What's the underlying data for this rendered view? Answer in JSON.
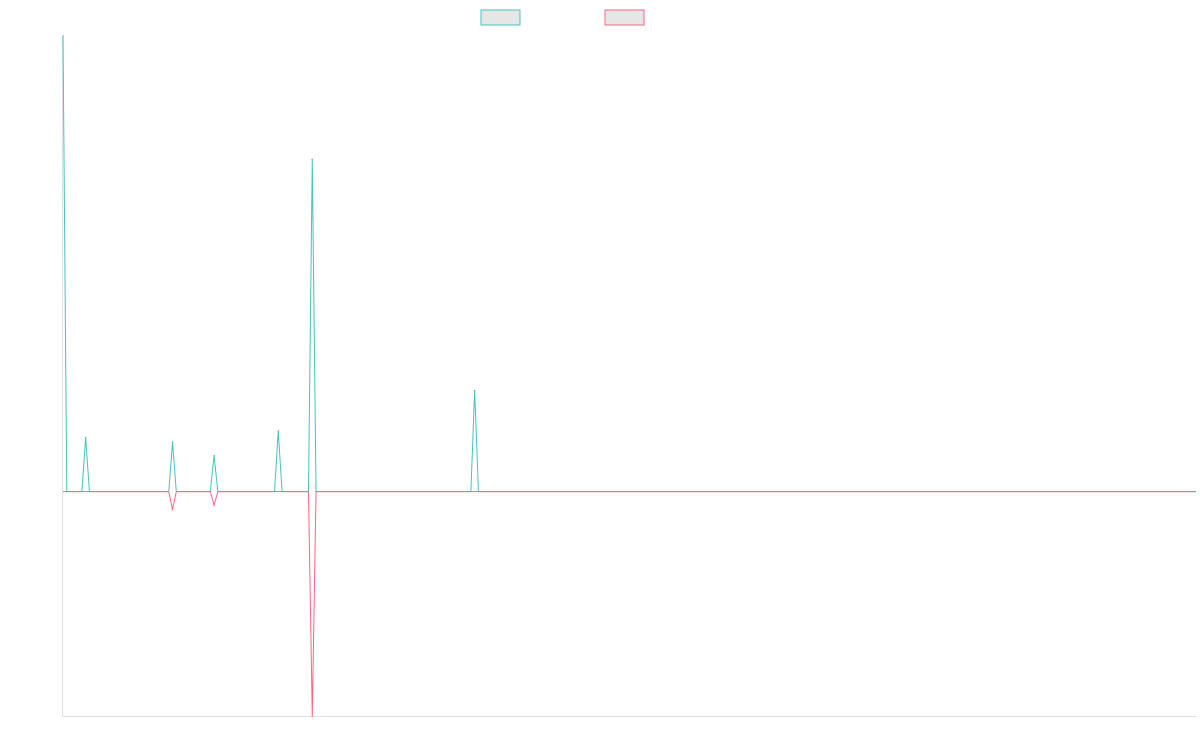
{
  "chart_data": {
    "type": "line",
    "title": "",
    "xlabel": "",
    "ylabel": "",
    "ylim": [
      -1.0,
      2.03
    ],
    "grid": false,
    "legend_position": "top-center",
    "x": [
      0,
      1,
      2,
      3,
      4,
      5,
      6,
      7,
      8,
      9,
      10,
      11,
      12,
      13,
      14,
      15,
      16,
      17,
      18,
      19,
      20,
      21,
      22,
      23,
      24,
      25,
      26,
      27,
      28,
      29,
      30,
      31,
      32,
      33,
      34,
      35,
      36,
      37,
      38,
      39,
      40,
      41,
      42,
      43,
      44,
      45,
      46,
      47,
      48,
      49,
      50,
      51,
      52,
      53,
      54,
      55,
      56,
      57,
      58,
      59,
      60,
      61,
      62,
      63,
      64,
      65,
      66,
      67,
      68,
      69,
      70,
      71,
      72,
      73,
      74,
      75,
      76,
      77,
      78,
      79,
      80,
      81,
      82,
      83,
      84,
      85,
      86,
      87,
      88,
      89,
      90,
      91,
      92,
      93,
      94,
      95,
      96,
      97,
      98,
      99,
      100,
      101,
      102,
      103,
      104,
      105,
      106,
      107,
      108,
      109,
      110,
      111,
      112,
      113,
      114,
      115,
      116,
      117,
      118,
      119,
      120,
      121,
      122,
      123,
      124,
      125,
      126,
      127,
      128,
      129,
      130,
      131,
      132,
      133,
      134,
      135,
      136,
      137,
      138,
      139,
      140,
      141,
      142,
      143,
      144,
      145,
      146,
      147,
      148,
      149,
      150,
      151,
      152,
      153,
      154,
      155,
      156,
      157,
      158,
      159,
      160,
      161,
      162,
      163,
      164,
      165,
      166,
      167,
      168,
      169,
      170,
      171,
      172,
      173,
      174,
      175,
      176,
      177,
      178,
      179,
      180,
      181,
      182,
      183,
      184,
      185,
      186,
      187,
      188,
      189,
      190,
      191,
      192,
      193,
      194,
      195,
      196,
      197,
      198,
      199,
      200,
      201,
      202,
      203,
      204,
      205,
      206,
      207,
      208,
      209,
      210,
      211,
      212,
      213,
      214,
      215,
      216,
      217,
      218,
      219,
      220,
      221,
      222,
      223,
      224,
      225,
      226,
      227,
      228,
      229,
      230,
      231,
      232,
      233,
      234,
      235,
      236,
      237,
      238,
      239,
      240,
      241,
      242,
      243,
      244,
      245,
      246,
      247,
      248,
      249,
      250,
      251,
      252,
      253,
      254,
      255,
      256,
      257,
      258,
      259,
      260,
      261,
      262,
      263,
      264,
      265,
      266,
      267,
      268,
      269,
      270,
      271,
      272,
      273,
      274,
      275,
      276,
      277,
      278,
      279,
      280,
      281,
      282,
      283,
      284,
      285,
      286,
      287,
      288,
      289,
      290,
      291,
      292,
      293,
      294,
      295,
      296,
      297,
      298,
      299,
      300
    ],
    "series": [
      {
        "name": "",
        "color": "#4bc0c0",
        "fill": "#e6e6e6",
        "spikes": [
          {
            "x": 0,
            "y": 2.03
          },
          {
            "x": 6,
            "y": 0.24
          },
          {
            "x": 29,
            "y": 0.22
          },
          {
            "x": 40,
            "y": 0.16
          },
          {
            "x": 57,
            "y": 0.27
          },
          {
            "x": 66,
            "y": 1.48
          },
          {
            "x": 109,
            "y": 0.45
          }
        ]
      },
      {
        "name": "",
        "color": "#ff6384",
        "fill": "#e6e6e6",
        "spikes": [
          {
            "x": 29,
            "y": -0.08
          },
          {
            "x": 40,
            "y": -0.06
          },
          {
            "x": 66,
            "y": -1.0
          }
        ]
      }
    ]
  }
}
